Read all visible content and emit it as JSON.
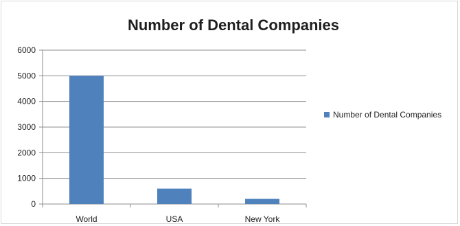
{
  "chart_data": {
    "type": "bar",
    "title": "Number of Dental Companies",
    "categories": [
      "World",
      "USA",
      "New York"
    ],
    "series": [
      {
        "name": "Number of Dental Companies",
        "values": [
          5000,
          600,
          200
        ],
        "color": "#4f81bd"
      }
    ],
    "ylim": [
      0,
      6000
    ],
    "yticks": [
      0,
      1000,
      2000,
      3000,
      4000,
      5000,
      6000
    ],
    "xlabel": "",
    "ylabel": "",
    "grid": true,
    "legend_position": "right"
  }
}
